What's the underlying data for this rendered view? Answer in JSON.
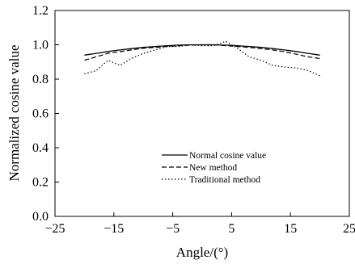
{
  "chart_data": {
    "type": "line",
    "xlabel": "Angle/(°)",
    "ylabel": "Normalized cosine value",
    "xlim": [
      -25,
      25
    ],
    "ylim": [
      0.0,
      1.2
    ],
    "x_ticks": [
      -25,
      -15,
      -5,
      5,
      15,
      25
    ],
    "x_tick_labels": [
      "−25",
      "−15",
      "−5",
      "5",
      "15",
      "25"
    ],
    "y_ticks": [
      0.0,
      0.2,
      0.4,
      0.6,
      0.8,
      1.0,
      1.2
    ],
    "y_tick_labels": [
      "0.0",
      "0.2",
      "0.4",
      "0.6",
      "0.8",
      "1.0",
      "1.2"
    ],
    "grid": false,
    "legend_position": "bottom-center",
    "x": [
      -20,
      -18,
      -16,
      -14,
      -12,
      -10,
      -8,
      -6,
      -4,
      -2,
      0,
      2,
      4,
      6,
      8,
      10,
      12,
      14,
      16,
      18,
      20
    ],
    "series": [
      {
        "name": "Normal cosine value",
        "style": "solid",
        "values": [
          0.94,
          0.95,
          0.961,
          0.97,
          0.978,
          0.985,
          0.99,
          0.995,
          0.998,
          1.0,
          1.0,
          1.0,
          0.998,
          0.995,
          0.99,
          0.985,
          0.978,
          0.97,
          0.961,
          0.95,
          0.94
        ]
      },
      {
        "name": "New method",
        "style": "dashed",
        "values": [
          0.91,
          0.93,
          0.95,
          0.96,
          0.97,
          0.98,
          0.985,
          0.99,
          0.995,
          0.998,
          1.0,
          1.0,
          0.995,
          0.99,
          0.985,
          0.978,
          0.97,
          0.96,
          0.945,
          0.93,
          0.92
        ]
      },
      {
        "name": "Traditional method",
        "style": "dotted",
        "values": [
          0.83,
          0.85,
          0.91,
          0.88,
          0.92,
          0.95,
          0.97,
          0.99,
          0.99,
          1.0,
          0.995,
          0.995,
          1.02,
          0.98,
          0.93,
          0.91,
          0.88,
          0.87,
          0.865,
          0.85,
          0.82
        ]
      }
    ]
  }
}
